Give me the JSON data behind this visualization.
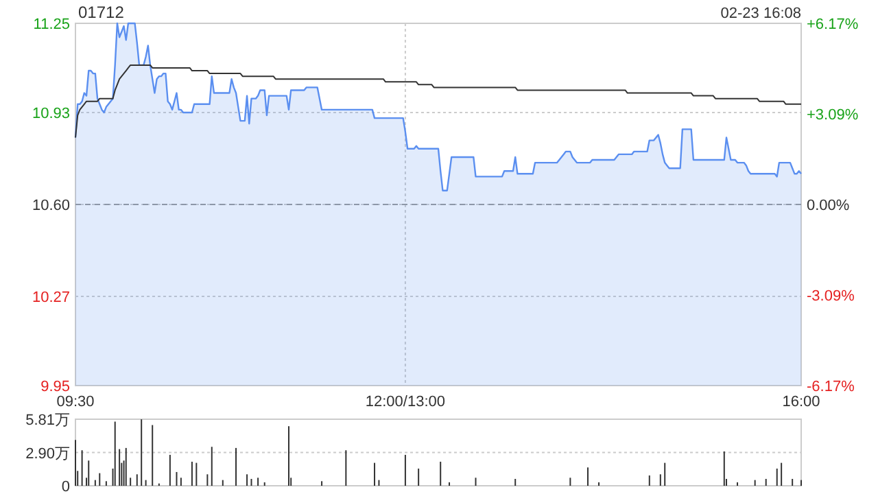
{
  "chart_data": [
    {
      "type": "line",
      "title": "01712",
      "annotations": [
        "02-23 16:08"
      ],
      "grid": true,
      "marker": "none",
      "line_style": "solid",
      "categories": [
        "09:30",
        null,
        null,
        null,
        null,
        null,
        null,
        null,
        null,
        null,
        null,
        null,
        null,
        null,
        null,
        null,
        null,
        null,
        null,
        null,
        null,
        null,
        null,
        null,
        null,
        null,
        null,
        null,
        null,
        null,
        null,
        null,
        null,
        null,
        null,
        null,
        null,
        null,
        null,
        null,
        null,
        null,
        null,
        null,
        null,
        null,
        null,
        null,
        null,
        null,
        null,
        null,
        null,
        null,
        null,
        null,
        null,
        null,
        null,
        null,
        null,
        null,
        null,
        null,
        null,
        null,
        null,
        null,
        null,
        null,
        null,
        null,
        null,
        null,
        null,
        null,
        null,
        null,
        null,
        null,
        null,
        null,
        null,
        null,
        null,
        null,
        null,
        null,
        null,
        null,
        null,
        null,
        null,
        null,
        null,
        null,
        null,
        null,
        null,
        null,
        null,
        null,
        null,
        null,
        null,
        null,
        null,
        null,
        null,
        null,
        null,
        null,
        null,
        null,
        null,
        null,
        null,
        null,
        null,
        null,
        null,
        null,
        null,
        null,
        null,
        null,
        null,
        null,
        null,
        null,
        null,
        null,
        null,
        null,
        null,
        null,
        null,
        null,
        null,
        null,
        null,
        null,
        null,
        null,
        null,
        null,
        null,
        null,
        null,
        null,
        "12:00/13:00",
        null,
        null,
        null,
        null,
        null,
        null,
        null,
        null,
        null,
        null,
        null,
        null,
        null,
        null,
        null,
        null,
        null,
        null,
        null,
        null,
        null,
        null,
        null,
        null,
        null,
        null,
        null,
        null,
        null,
        null,
        null,
        null,
        null,
        null,
        null,
        null,
        null,
        null,
        null,
        null,
        null,
        null,
        null,
        null,
        null,
        null,
        null,
        null,
        null,
        null,
        null,
        null,
        null,
        null,
        null,
        null,
        null,
        null,
        null,
        null,
        null,
        null,
        null,
        null,
        null,
        null,
        null,
        null,
        null,
        null,
        null,
        null,
        null,
        null,
        null,
        null,
        null,
        null,
        null,
        null,
        null,
        null,
        null,
        null,
        null,
        null,
        null,
        null,
        null,
        null,
        null,
        null,
        null,
        null,
        null,
        null,
        null,
        null,
        null,
        null,
        null,
        null,
        null,
        null,
        null,
        null,
        null,
        null,
        null,
        null,
        null,
        null,
        null,
        null,
        null,
        null,
        null,
        null,
        null,
        null,
        null,
        null,
        null,
        null,
        null,
        null,
        null,
        null,
        null,
        null,
        null,
        null,
        null,
        null,
        null,
        null,
        null,
        null,
        null,
        null,
        null,
        null,
        null,
        null,
        null,
        null,
        null,
        null,
        null,
        null,
        null,
        null,
        null,
        null,
        null,
        null,
        null,
        null,
        null,
        null,
        null,
        null,
        null,
        null,
        null,
        null,
        null,
        null,
        null,
        null,
        null,
        null,
        null,
        null,
        null,
        null,
        null,
        null,
        null,
        "16:00"
      ],
      "ylim": [
        9.95,
        11.25
      ],
      "yticks": [
        11.25,
        10.93,
        {
          "value": 10.6,
          "label": "10.60"
        },
        10.27,
        9.95
      ],
      "ref_lines": [
        {
          "axis": "y",
          "value": 10.6,
          "color": "#999999",
          "line_style": "dashed"
        }
      ],
      "y2lim": [
        -6.17,
        6.17
      ],
      "y2ticks": [
        {
          "value": 6.17,
          "label": "+6.17%"
        },
        {
          "value": 3.09,
          "label": "+3.09%"
        },
        {
          "value": 0,
          "label": "0.00%"
        },
        {
          "value": -3.09,
          "label": "-3.09%"
        },
        {
          "value": -6.17,
          "label": "-6.17%"
        }
      ],
      "series": [
        {
          "type": "area",
          "color": "#5b8ff0",
          "values": [
            10.84,
            10.96,
            10.96,
            10.97,
            11.0,
            10.99,
            11.08,
            11.08,
            11.07,
            11.07,
            10.98,
            10.96,
            10.94,
            10.93,
            10.95,
            10.96,
            10.97,
            10.98,
            11.1,
            11.25,
            11.2,
            11.22,
            11.24,
            11.19,
            11.25,
            11.25,
            11.25,
            11.25,
            11.18,
            11.1,
            11.1,
            11.1,
            11.13,
            11.17,
            11.1,
            11.05,
            11.0,
            11.05,
            11.06,
            11.06,
            11.07,
            11.07,
            10.97,
            10.96,
            10.94,
            10.97,
            11.0,
            10.94,
            10.94,
            10.93,
            10.93,
            10.93,
            10.93,
            10.93,
            10.96,
            10.96,
            10.96,
            10.96,
            10.96,
            10.96,
            10.96,
            10.96,
            11.06,
            11.0,
            11.0,
            11.0,
            11.0,
            11.0,
            11.0,
            11.0,
            11.0,
            11.05,
            11.02,
            11.0,
            10.95,
            10.9,
            10.9,
            10.9,
            10.99,
            10.89,
            10.98,
            10.98,
            10.98,
            10.99,
            11.01,
            11.01,
            11.01,
            10.92,
            10.99,
            10.99,
            10.99,
            10.99,
            10.99,
            10.99,
            10.99,
            10.99,
            10.99,
            10.94,
            11.01,
            11.01,
            11.01,
            11.01,
            11.01,
            11.01,
            11.01,
            11.02,
            11.02,
            11.02,
            11.02,
            11.02,
            11.02,
            10.98,
            10.94,
            10.94,
            10.94,
            10.94,
            10.94,
            10.94,
            10.94,
            10.94,
            10.94,
            10.94,
            10.94,
            10.94,
            10.94,
            10.94,
            10.94,
            10.94,
            10.94,
            10.94,
            10.94,
            10.94,
            10.94,
            10.94,
            10.94,
            10.94,
            10.91,
            10.91,
            10.91,
            10.91,
            10.91,
            10.91,
            10.91,
            10.91,
            10.91,
            10.91,
            10.91,
            10.91,
            10.91,
            10.91,
            10.86,
            10.8,
            10.8,
            10.8,
            10.8,
            10.81,
            10.8,
            10.8,
            10.8,
            10.8,
            10.8,
            10.8,
            10.8,
            10.8,
            10.8,
            10.8,
            10.72,
            10.65,
            10.65,
            10.65,
            10.71,
            10.77,
            10.77,
            10.77,
            10.77,
            10.77,
            10.77,
            10.77,
            10.77,
            10.77,
            10.77,
            10.77,
            10.7,
            10.7,
            10.7,
            10.7,
            10.7,
            10.7,
            10.7,
            10.7,
            10.7,
            10.7,
            10.7,
            10.7,
            10.7,
            10.72,
            10.72,
            10.72,
            10.72,
            10.72,
            10.77,
            10.71,
            10.71,
            10.71,
            10.71,
            10.71,
            10.71,
            10.71,
            10.71,
            10.75,
            10.75,
            10.75,
            10.75,
            10.75,
            10.75,
            10.75,
            10.75,
            10.75,
            10.75,
            10.75,
            10.76,
            10.77,
            10.78,
            10.79,
            10.79,
            10.79,
            10.77,
            10.76,
            10.75,
            10.75,
            10.75,
            10.75,
            10.75,
            10.75,
            10.75,
            10.76,
            10.76,
            10.76,
            10.76,
            10.76,
            10.76,
            10.76,
            10.76,
            10.76,
            10.76,
            10.76,
            10.77,
            10.78,
            10.78,
            10.78,
            10.78,
            10.78,
            10.78,
            10.78,
            10.79,
            10.79,
            10.79,
            10.79,
            10.79,
            10.79,
            10.79,
            10.83,
            10.83,
            10.83,
            10.84,
            10.85,
            10.82,
            10.78,
            10.75,
            10.74,
            10.73,
            10.73,
            10.73,
            10.73,
            10.73,
            10.73,
            10.87,
            10.87,
            10.87,
            10.87,
            10.87,
            10.76,
            10.76,
            10.76,
            10.76,
            10.76,
            10.76,
            10.76,
            10.76,
            10.76,
            10.76,
            10.76,
            10.76,
            10.76,
            10.76,
            10.76,
            10.84,
            10.8,
            10.76,
            10.76,
            10.76,
            10.75,
            10.75,
            10.75,
            10.75,
            10.74,
            10.72,
            10.71,
            10.71,
            10.71,
            10.71,
            10.71,
            10.71,
            10.71,
            10.71,
            10.71,
            10.71,
            10.71,
            10.71,
            10.7,
            10.75,
            10.75,
            10.75,
            10.75,
            10.75,
            10.75,
            10.73,
            10.71,
            10.71,
            10.72,
            10.71
          ]
        },
        {
          "type": "line",
          "color": "#333333",
          "values": [
            10.84,
            10.92,
            10.94,
            10.95,
            10.96,
            10.97,
            10.97,
            10.97,
            10.97,
            10.97,
            10.97,
            10.98,
            10.98,
            10.98,
            10.98,
            10.98,
            10.98,
            10.98,
            11.01,
            11.03,
            11.05,
            11.06,
            11.07,
            11.08,
            11.09,
            11.1,
            11.1,
            11.1,
            11.1,
            11.1,
            11.1,
            11.1,
            11.1,
            11.1,
            11.1,
            11.09,
            11.09,
            11.09,
            11.09,
            11.09,
            11.09,
            11.09,
            11.09,
            11.09,
            11.09,
            11.09,
            11.09,
            11.09,
            11.09,
            11.09,
            11.09,
            11.09,
            11.09,
            11.08,
            11.08,
            11.08,
            11.08,
            11.08,
            11.08,
            11.08,
            11.08,
            11.07,
            11.07,
            11.07,
            11.07,
            11.07,
            11.07,
            11.07,
            11.07,
            11.07,
            11.07,
            11.07,
            11.07,
            11.07,
            11.07,
            11.07,
            11.06,
            11.06,
            11.06,
            11.06,
            11.06,
            11.06,
            11.06,
            11.06,
            11.06,
            11.06,
            11.06,
            11.06,
            11.06,
            11.06,
            11.06,
            11.05,
            11.05,
            11.05,
            11.05,
            11.05,
            11.05,
            11.05,
            11.05,
            11.05,
            11.05,
            11.05,
            11.05,
            11.05,
            11.05,
            11.05,
            11.05,
            11.05,
            11.05,
            11.05,
            11.05,
            11.05,
            11.05,
            11.05,
            11.05,
            11.05,
            11.05,
            11.05,
            11.05,
            11.05,
            11.05,
            11.05,
            11.05,
            11.05,
            11.05,
            11.05,
            11.05,
            11.05,
            11.05,
            11.05,
            11.05,
            11.05,
            11.05,
            11.05,
            11.05,
            11.05,
            11.05,
            11.05,
            11.05,
            11.05,
            11.05,
            11.04,
            11.04,
            11.04,
            11.04,
            11.04,
            11.04,
            11.04,
            11.04,
            11.04,
            11.04,
            11.04,
            11.04,
            11.04,
            11.04,
            11.04,
            11.03,
            11.03,
            11.03,
            11.03,
            11.03,
            11.03,
            11.03,
            11.02,
            11.02,
            11.02,
            11.02,
            11.02,
            11.02,
            11.02,
            11.02,
            11.02,
            11.02,
            11.02,
            11.02,
            11.02,
            11.02,
            11.02,
            11.02,
            11.02,
            11.02,
            11.02,
            11.02,
            11.02,
            11.02,
            11.02,
            11.02,
            11.02,
            11.02,
            11.02,
            11.02,
            11.02,
            11.02,
            11.02,
            11.02,
            11.02,
            11.02,
            11.02,
            11.02,
            11.02,
            11.02,
            11.01,
            11.01,
            11.01,
            11.01,
            11.01,
            11.01,
            11.01,
            11.01,
            11.01,
            11.01,
            11.01,
            11.01,
            11.01,
            11.01,
            11.01,
            11.01,
            11.01,
            11.01,
            11.01,
            11.01,
            11.01,
            11.01,
            11.01,
            11.01,
            11.01,
            11.01,
            11.01,
            11.01,
            11.01,
            11.01,
            11.01,
            11.01,
            11.01,
            11.01,
            11.01,
            11.01,
            11.01,
            11.01,
            11.01,
            11.01,
            11.01,
            11.01,
            11.01,
            11.01,
            11.01,
            11.01,
            11.01,
            11.01,
            11.01,
            11.01,
            11.0,
            11.0,
            11.0,
            11.0,
            11.0,
            11.0,
            11.0,
            11.0,
            11.0,
            11.0,
            11.0,
            11.0,
            11.0,
            11.0,
            11.0,
            11.0,
            11.0,
            11.0,
            11.0,
            11.0,
            11.0,
            11.0,
            11.0,
            11.0,
            11.0,
            11.0,
            11.0,
            11.0,
            11.0,
            11.0,
            10.99,
            10.99,
            10.99,
            10.99,
            10.99,
            10.99,
            10.99,
            10.99,
            10.99,
            10.99,
            10.98,
            10.98,
            10.98,
            10.98,
            10.98,
            10.98,
            10.98,
            10.98,
            10.98,
            10.98,
            10.98,
            10.98,
            10.98,
            10.98,
            10.98,
            10.98,
            10.98,
            10.98,
            10.98,
            10.98,
            10.97,
            10.97,
            10.97,
            10.97,
            10.97,
            10.97,
            10.97,
            10.97,
            10.97,
            10.97,
            10.97,
            10.97,
            10.96,
            10.96,
            10.96,
            10.96,
            10.96,
            10.96,
            10.96,
            10.96
          ]
        }
      ]
    },
    {
      "type": "bar",
      "grid": true,
      "tick_labels": "y",
      "categories": [
        null,
        null,
        null,
        null,
        null,
        null,
        null,
        null,
        null,
        null,
        null,
        null,
        null,
        null,
        null,
        null,
        null,
        null,
        null,
        null,
        null,
        null,
        null,
        null,
        null,
        null,
        null,
        null,
        null,
        null,
        null,
        null,
        null,
        null,
        null,
        null,
        null,
        null,
        null,
        null,
        null,
        null,
        null,
        null,
        null,
        null,
        null,
        null,
        null,
        null,
        null,
        null,
        null,
        null,
        null,
        null,
        null,
        null,
        null,
        null,
        null,
        null,
        null,
        null,
        null,
        null,
        null,
        null,
        null,
        null,
        null,
        null,
        null,
        null,
        null,
        null,
        null,
        null,
        null,
        null,
        null,
        null,
        null,
        null,
        null,
        null,
        null,
        null,
        null,
        null,
        null,
        null,
        null,
        null,
        null,
        null,
        null,
        null,
        null,
        null,
        null,
        null,
        null,
        null,
        null,
        null,
        null,
        null,
        null,
        null,
        null,
        null,
        null,
        null,
        null,
        null,
        null,
        null,
        null,
        null,
        null,
        null,
        null,
        null,
        null,
        null,
        null,
        null,
        null,
        null,
        null,
        null,
        null,
        null,
        null,
        null,
        null,
        null,
        null,
        null,
        null,
        null,
        null,
        null,
        null,
        null,
        null,
        null,
        null,
        null,
        null,
        null,
        null,
        null,
        null,
        null,
        null,
        null,
        null,
        null,
        null,
        null,
        null,
        null,
        null,
        null,
        null,
        null,
        null,
        null,
        null,
        null,
        null,
        null,
        null,
        null,
        null,
        null,
        null,
        null,
        null,
        null,
        null,
        null,
        null,
        null,
        null,
        null,
        null,
        null,
        null,
        null,
        null,
        null,
        null,
        null,
        null,
        null,
        null,
        null,
        null,
        null,
        null,
        null,
        null,
        null,
        null,
        null,
        null,
        null,
        null,
        null,
        null,
        null,
        null,
        null,
        null,
        null,
        null,
        null,
        null,
        null,
        null,
        null,
        null,
        null,
        null,
        null,
        null,
        null,
        null,
        null,
        null,
        null,
        null,
        null,
        null,
        null,
        null,
        null,
        null,
        null,
        null,
        null,
        null,
        null,
        null,
        null,
        null,
        null,
        null,
        null,
        null,
        null,
        null,
        null,
        null,
        null,
        null,
        null,
        null,
        null,
        null,
        null,
        null,
        null,
        null,
        null,
        null,
        null,
        null,
        null,
        null,
        null,
        null,
        null,
        null,
        null,
        null,
        null,
        null,
        null,
        null,
        null,
        null,
        null,
        null,
        null,
        null,
        null,
        null,
        null,
        null,
        null,
        null,
        null,
        null,
        null,
        null,
        null,
        null,
        null,
        null,
        null,
        null,
        null,
        null,
        null,
        null,
        null,
        null,
        null,
        null,
        null,
        null,
        null,
        null,
        null,
        null,
        null,
        null,
        null,
        null,
        null,
        null,
        null,
        null,
        null,
        null,
        null,
        null
      ],
      "ylim": [
        0,
        5.81
      ],
      "yticks": [
        {
          "value": 5.81,
          "label": "5.81万"
        },
        {
          "value": 2.9,
          "label": "2.90万"
        },
        0
      ],
      "series": [
        {
          "color": "#333333",
          "values": [
            4.0,
            1.3,
            null,
            3.1,
            null,
            0.7,
            2.2,
            null,
            null,
            0.5,
            null,
            1.1,
            null,
            null,
            0.4,
            null,
            null,
            1.5,
            5.6,
            null,
            3.2,
            2.0,
            2.2,
            3.3,
            null,
            0.7,
            null,
            null,
            1.0,
            null,
            5.8,
            null,
            0.5,
            null,
            null,
            5.3,
            null,
            null,
            0.2,
            null,
            null,
            null,
            null,
            2.7,
            null,
            null,
            1.2,
            null,
            0.7,
            null,
            null,
            null,
            null,
            2.1,
            null,
            2.0,
            null,
            null,
            null,
            null,
            1.0,
            null,
            3.4,
            null,
            null,
            null,
            null,
            0.5,
            null,
            null,
            null,
            null,
            null,
            3.3,
            null,
            null,
            null,
            null,
            1.0,
            null,
            0.6,
            null,
            null,
            0.7,
            null,
            null,
            0.3,
            null,
            null,
            null,
            null,
            null,
            null,
            null,
            null,
            null,
            null,
            5.2,
            0.7,
            null,
            null,
            null,
            null,
            null,
            null,
            null,
            null,
            null,
            null,
            null,
            null,
            null,
            0.4,
            null,
            null,
            null,
            null,
            null,
            null,
            null,
            null,
            null,
            null,
            3.1,
            null,
            null,
            null,
            null,
            null,
            null,
            null,
            null,
            null,
            null,
            null,
            null,
            2.0,
            null,
            0.5,
            null,
            null,
            null,
            null,
            null,
            null,
            null,
            null,
            null,
            null,
            null,
            2.7,
            null,
            null,
            null,
            null,
            null,
            1.5,
            null,
            null,
            null,
            null,
            null,
            null,
            null,
            null,
            null,
            2.1,
            null,
            null,
            null,
            0.3,
            null,
            null,
            null,
            null,
            null,
            null,
            null,
            null,
            null,
            null,
            null,
            0.7,
            null,
            null,
            null,
            null,
            null,
            null,
            null,
            null,
            null,
            null,
            null,
            null,
            null,
            null,
            null,
            null,
            null,
            0.6,
            null,
            null,
            null,
            null,
            null,
            null,
            null,
            null,
            null,
            null,
            null,
            null,
            null,
            null,
            null,
            null,
            null,
            null,
            null,
            null,
            null,
            null,
            null,
            null,
            0.7,
            null,
            null,
            null,
            null,
            null,
            null,
            null,
            1.6,
            null,
            null,
            null,
            null,
            0.3,
            null,
            null,
            null,
            null,
            null,
            null,
            null,
            null,
            null,
            null,
            null,
            null,
            null,
            null,
            null,
            null,
            null,
            null,
            null,
            null,
            null,
            null,
            0.9,
            null,
            null,
            null,
            null,
            1.0,
            null,
            2.0,
            null,
            null,
            null,
            null,
            null,
            null,
            null,
            null,
            null,
            null,
            null,
            null,
            null,
            null,
            null,
            null,
            null,
            null,
            null,
            null,
            null,
            null,
            null,
            null,
            null,
            null,
            3.0,
            0.6,
            null,
            null,
            null,
            null,
            0.3,
            null,
            null,
            null,
            null,
            null,
            null,
            null,
            0.5,
            null,
            null,
            null,
            null,
            0.6,
            null,
            null,
            null,
            null,
            1.5,
            null,
            2.0,
            null,
            null,
            null,
            null,
            0.6,
            null,
            null,
            null,
            0.5
          ]
        }
      ]
    }
  ]
}
